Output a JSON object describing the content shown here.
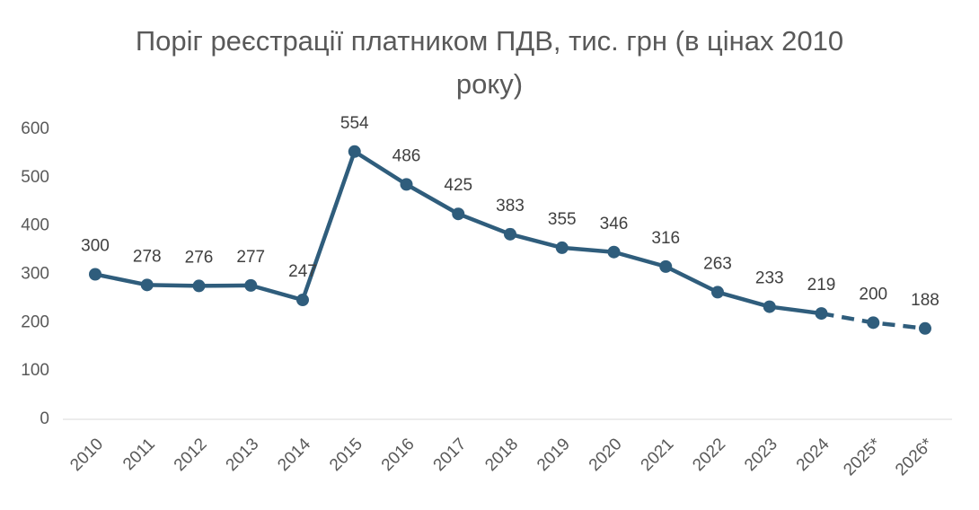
{
  "chart_data": {
    "type": "line",
    "title": "Поріг реєстрації платником ПДВ, тис. грн (в цінах 2010 року)",
    "categories": [
      "2010",
      "2011",
      "2012",
      "2013",
      "2014",
      "2015",
      "2016",
      "2017",
      "2018",
      "2019",
      "2020",
      "2021",
      "2022",
      "2023",
      "2024",
      "2025*",
      "2026*"
    ],
    "series": [
      {
        "name": "Поріг",
        "color": "#2f5d7c",
        "values": [
          300,
          278,
          276,
          277,
          247,
          554,
          486,
          425,
          383,
          355,
          346,
          316,
          263,
          233,
          219,
          200,
          188
        ],
        "dashed": [
          false,
          false,
          false,
          false,
          false,
          false,
          false,
          false,
          false,
          false,
          false,
          false,
          false,
          false,
          false,
          true,
          true
        ]
      }
    ],
    "ylim": [
      0,
      600
    ],
    "yticks": [
      0,
      100,
      200,
      300,
      400,
      500,
      600
    ],
    "grid": false
  }
}
